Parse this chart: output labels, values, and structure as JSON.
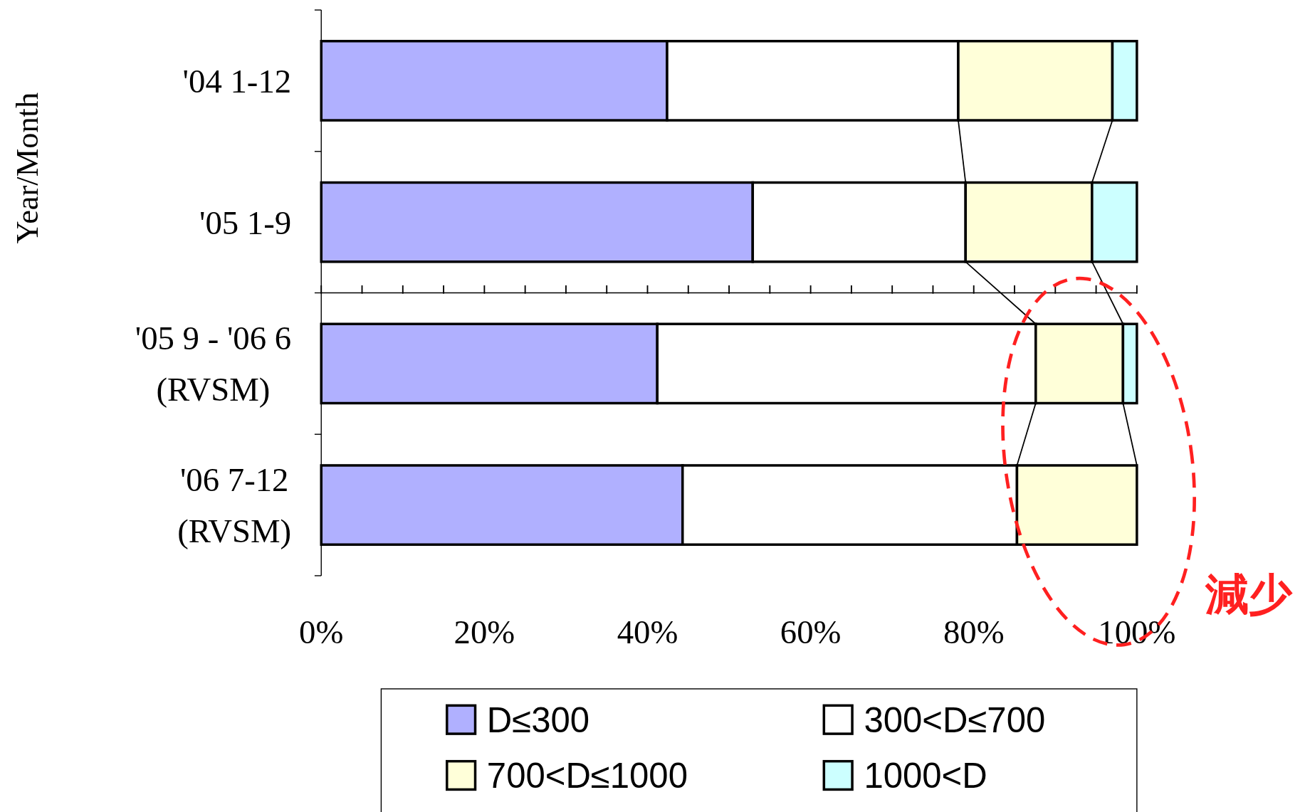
{
  "chart_data": {
    "type": "bar",
    "orientation": "horizontal",
    "stacked": true,
    "ylabel": "Year/Month",
    "categories": [
      "'04 1-12",
      "'05 1-9",
      "'05 9 - '06 6\n(RVSM)",
      "'06 7-12\n(RVSM)"
    ],
    "series": [
      {
        "name": "D≤300",
        "color": "#b0b0ff",
        "values": [
          42.4,
          52.9,
          41.2,
          44.3
        ]
      },
      {
        "name": "300<D≤700",
        "color": "#ffffff",
        "values": [
          35.7,
          26.1,
          46.4,
          41.0
        ]
      },
      {
        "name": "700<D≤1000",
        "color": "#ffffd9",
        "values": [
          18.9,
          15.5,
          10.7,
          14.7
        ]
      },
      {
        "name": "1000<D",
        "color": "#ccffff",
        "values": [
          3.0,
          5.5,
          1.7,
          0
        ]
      }
    ],
    "xlim": [
      0,
      100
    ],
    "xticks": [
      {
        "value": 0,
        "label": "0%"
      },
      {
        "value": 20,
        "label": "20%"
      },
      {
        "value": 40,
        "label": "40%"
      },
      {
        "value": 60,
        "label": "60%"
      },
      {
        "value": 80,
        "label": "80%"
      },
      {
        "value": 100,
        "label": "100%"
      }
    ],
    "legend": "bottom",
    "annotations": [
      "減少"
    ]
  }
}
